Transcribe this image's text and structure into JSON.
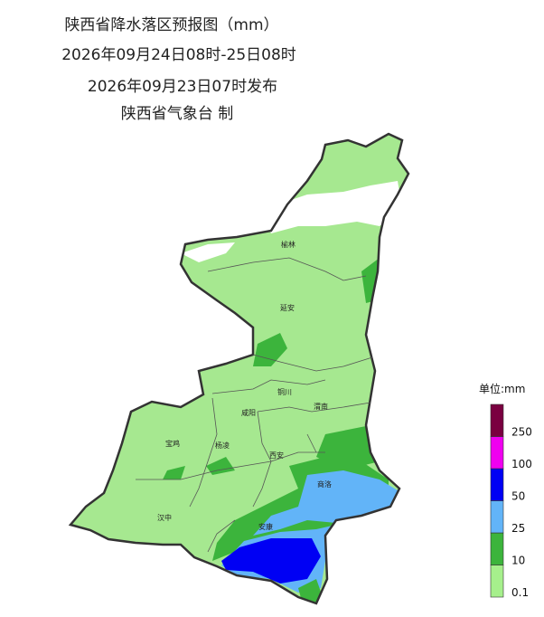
{
  "title": "陕西省降水落区预报图（mm）",
  "valid_period": "2026年09月24日08时-25日08时",
  "issued": "2026年09月23日07时发布",
  "issuer": "陕西省气象台 制",
  "cities": [
    "榆林",
    "延安",
    "铜川",
    "渭南",
    "咸阳",
    "宝鸡",
    "杨凌",
    "西安",
    "商洛",
    "汉中",
    "安康"
  ],
  "legend": {
    "title": "单位:mm",
    "levels": [
      {
        "label": 0.1,
        "color": "#a6f08c"
      },
      {
        "label": 10,
        "color": "#3cb43c"
      },
      {
        "label": 25,
        "color": "#62b4f8"
      },
      {
        "label": 50,
        "color": "#0000f4"
      },
      {
        "label": 100,
        "color": "#f000f0"
      },
      {
        "label": 250,
        "color": "#7a0040"
      }
    ]
  }
}
